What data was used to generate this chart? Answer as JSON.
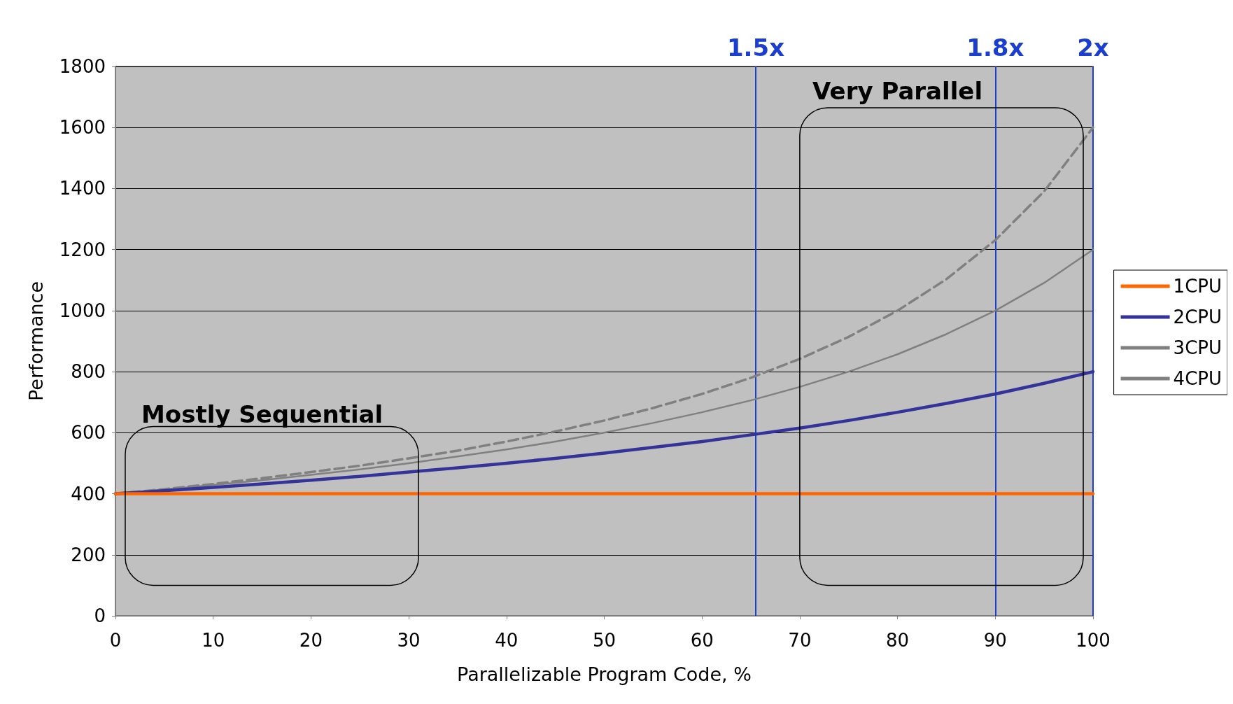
{
  "chart_data": {
    "type": "line",
    "xlabel": "Parallelizable Program Code, %",
    "ylabel": "Performance",
    "x": [
      0,
      5,
      10,
      15,
      20,
      25,
      30,
      35,
      40,
      45,
      50,
      55,
      60,
      65,
      70,
      75,
      80,
      85,
      90,
      95,
      100
    ],
    "series": [
      {
        "name": "1CPU",
        "color": "#ff6600",
        "values": [
          400,
          400,
          400,
          400,
          400,
          400,
          400,
          400,
          400,
          400,
          400,
          400,
          400,
          400,
          400,
          400,
          400,
          400,
          400,
          400,
          400
        ]
      },
      {
        "name": "2CPU",
        "color": "#333399",
        "values": [
          400,
          410,
          421,
          432,
          444,
          457,
          471,
          485,
          500,
          516,
          533,
          552,
          571,
          593,
          615,
          640,
          667,
          696,
          727,
          762,
          800
        ]
      },
      {
        "name": "3CPU",
        "color": "#808080",
        "values": [
          400,
          414,
          429,
          444,
          462,
          480,
          500,
          522,
          545,
          571,
          600,
          632,
          667,
          706,
          750,
          800,
          857,
          923,
          1000,
          1091,
          1200
        ]
      },
      {
        "name": "4CPU",
        "color": "#808080",
        "line_style": "dashed",
        "values": [
          400,
          415,
          432,
          451,
          471,
          492,
          516,
          541,
          571,
          604,
          640,
          681,
          727,
          780,
          842,
          914,
          1000,
          1103,
          1231,
          1391,
          1600
        ]
      }
    ],
    "xlim": [
      0,
      100
    ],
    "xticks": [
      0,
      10,
      20,
      30,
      40,
      50,
      60,
      70,
      80,
      90,
      100
    ],
    "ylim": [
      0,
      1800
    ],
    "yticks": [
      0,
      200,
      400,
      600,
      800,
      1000,
      1200,
      1400,
      1600,
      1800
    ],
    "ref_lines": [
      {
        "axis": "x",
        "value": 65.5,
        "label": "1.5x",
        "color": "#1a3fd0"
      },
      {
        "axis": "x",
        "value": 90,
        "label": "1.8x",
        "color": "#1a3fd0"
      },
      {
        "axis": "x",
        "value": 100,
        "label": "2x",
        "color": "#1a3fd0"
      }
    ],
    "annotations": [
      "Mostly Sequential",
      "Very Parallel"
    ],
    "grid": "y",
    "legend": "right",
    "marker": "none",
    "line_style": "solid"
  }
}
